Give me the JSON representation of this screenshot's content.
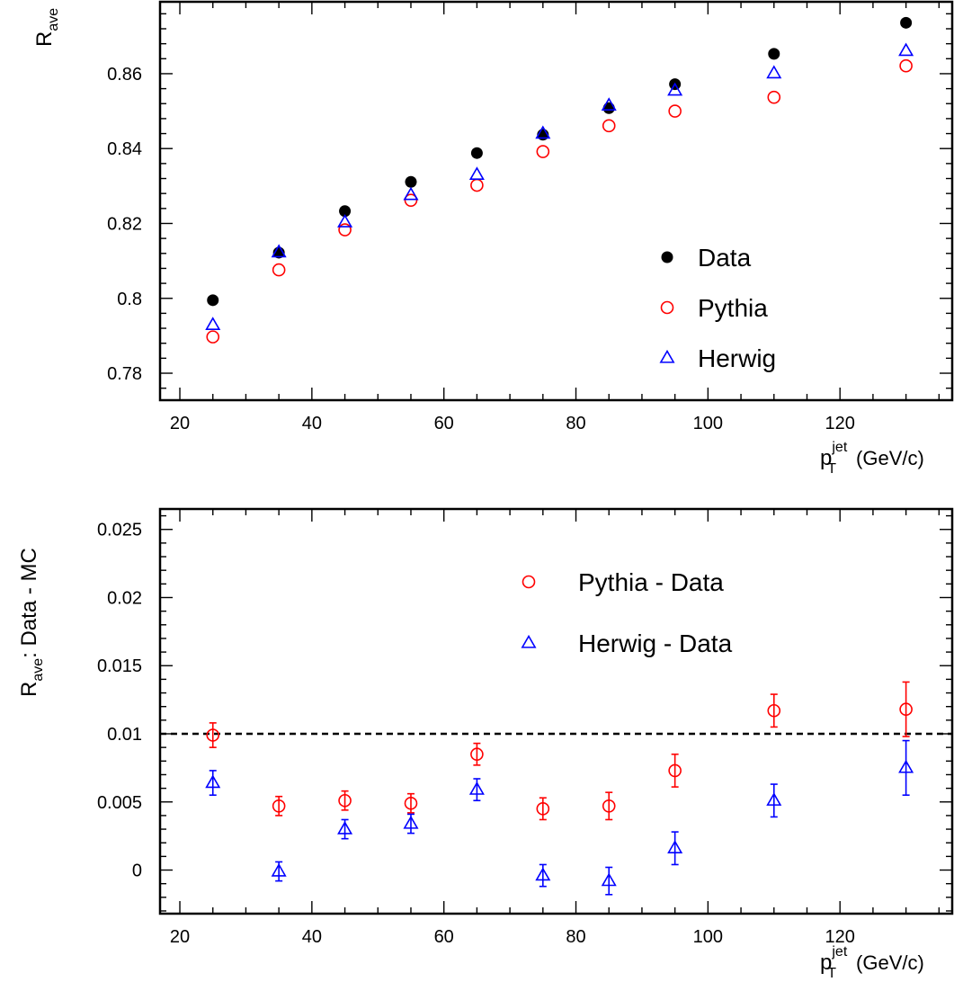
{
  "chart_data": [
    {
      "type": "scatter",
      "ylabel": "R",
      "ylabel_sub": "ave",
      "xlabel": "p",
      "xlabel_sup": "jet",
      "xlabel_sub": "T",
      "xlabel_unit": "(GeV/c)",
      "xlim": [
        17,
        137
      ],
      "ylim": [
        0.7728,
        0.8792
      ],
      "xticks": [
        20,
        40,
        60,
        80,
        100,
        120
      ],
      "xtick_labels": [
        "20",
        "40",
        "60",
        "80",
        "100",
        "120"
      ],
      "yticks": [
        0.78,
        0.8,
        0.82,
        0.84,
        0.86
      ],
      "ytick_labels": [
        "0.78",
        "0.8",
        "0.82",
        "0.84",
        "0.86"
      ],
      "legend_position": "bottom-right",
      "x": [
        25,
        35,
        45,
        55,
        65,
        75,
        85,
        95,
        110,
        130
      ],
      "series": [
        {
          "name": "Data",
          "marker": "filled-circle",
          "color": "#000000",
          "values": [
            0.7995,
            0.8122,
            0.8233,
            0.8311,
            0.8388,
            0.8437,
            0.8508,
            0.8572,
            0.8653,
            0.8736
          ]
        },
        {
          "name": "Pythia",
          "marker": "open-circle",
          "color": "#ff0000",
          "values": [
            0.7897,
            0.8076,
            0.8183,
            0.8262,
            0.8302,
            0.8392,
            0.8461,
            0.85,
            0.8537,
            0.8621
          ]
        },
        {
          "name": "Herwig",
          "marker": "open-triangle",
          "color": "#0000ff",
          "values": [
            0.7929,
            0.8123,
            0.8203,
            0.8276,
            0.833,
            0.844,
            0.8515,
            0.8555,
            0.8601,
            0.8661
          ]
        }
      ]
    },
    {
      "type": "scatter",
      "ylabel": "R",
      "ylabel_sub": "ave",
      "ylabel_rest": ": Data - MC",
      "xlabel": "p",
      "xlabel_sup": "jet",
      "xlabel_sub": "T",
      "xlabel_unit": "(GeV/c)",
      "xlim": [
        17,
        137
      ],
      "ylim": [
        -0.0032,
        0.0265
      ],
      "xticks": [
        20,
        40,
        60,
        80,
        100,
        120
      ],
      "xtick_labels": [
        "20",
        "40",
        "60",
        "80",
        "100",
        "120"
      ],
      "yticks": [
        0,
        0.005,
        0.01,
        0.015,
        0.02,
        0.025
      ],
      "ytick_labels": [
        "0",
        "0.005",
        "0.01",
        "0.015",
        "0.02",
        "0.025"
      ],
      "reference_line": 0.01,
      "legend_position": "top-center",
      "x": [
        25,
        35,
        45,
        55,
        65,
        75,
        85,
        95,
        110,
        130
      ],
      "series": [
        {
          "name": "Pythia - Data",
          "marker": "open-circle",
          "color": "#ff0000",
          "values": [
            0.0099,
            0.0047,
            0.0051,
            0.0049,
            0.0085,
            0.0045,
            0.0047,
            0.0073,
            0.0117,
            0.0118
          ],
          "errors": [
            0.0009,
            0.0007,
            0.0007,
            0.0007,
            0.0008,
            0.0008,
            0.001,
            0.0012,
            0.0012,
            0.002
          ]
        },
        {
          "name": "Herwig - Data",
          "marker": "open-triangle",
          "color": "#0000ff",
          "values": [
            0.0064,
            -0.0001,
            0.003,
            0.0034,
            0.0059,
            -0.0004,
            -0.0008,
            0.0016,
            0.0051,
            0.0075
          ],
          "errors": [
            0.0009,
            0.0007,
            0.0007,
            0.0007,
            0.0008,
            0.0008,
            0.001,
            0.0012,
            0.0012,
            0.002
          ]
        }
      ]
    }
  ]
}
